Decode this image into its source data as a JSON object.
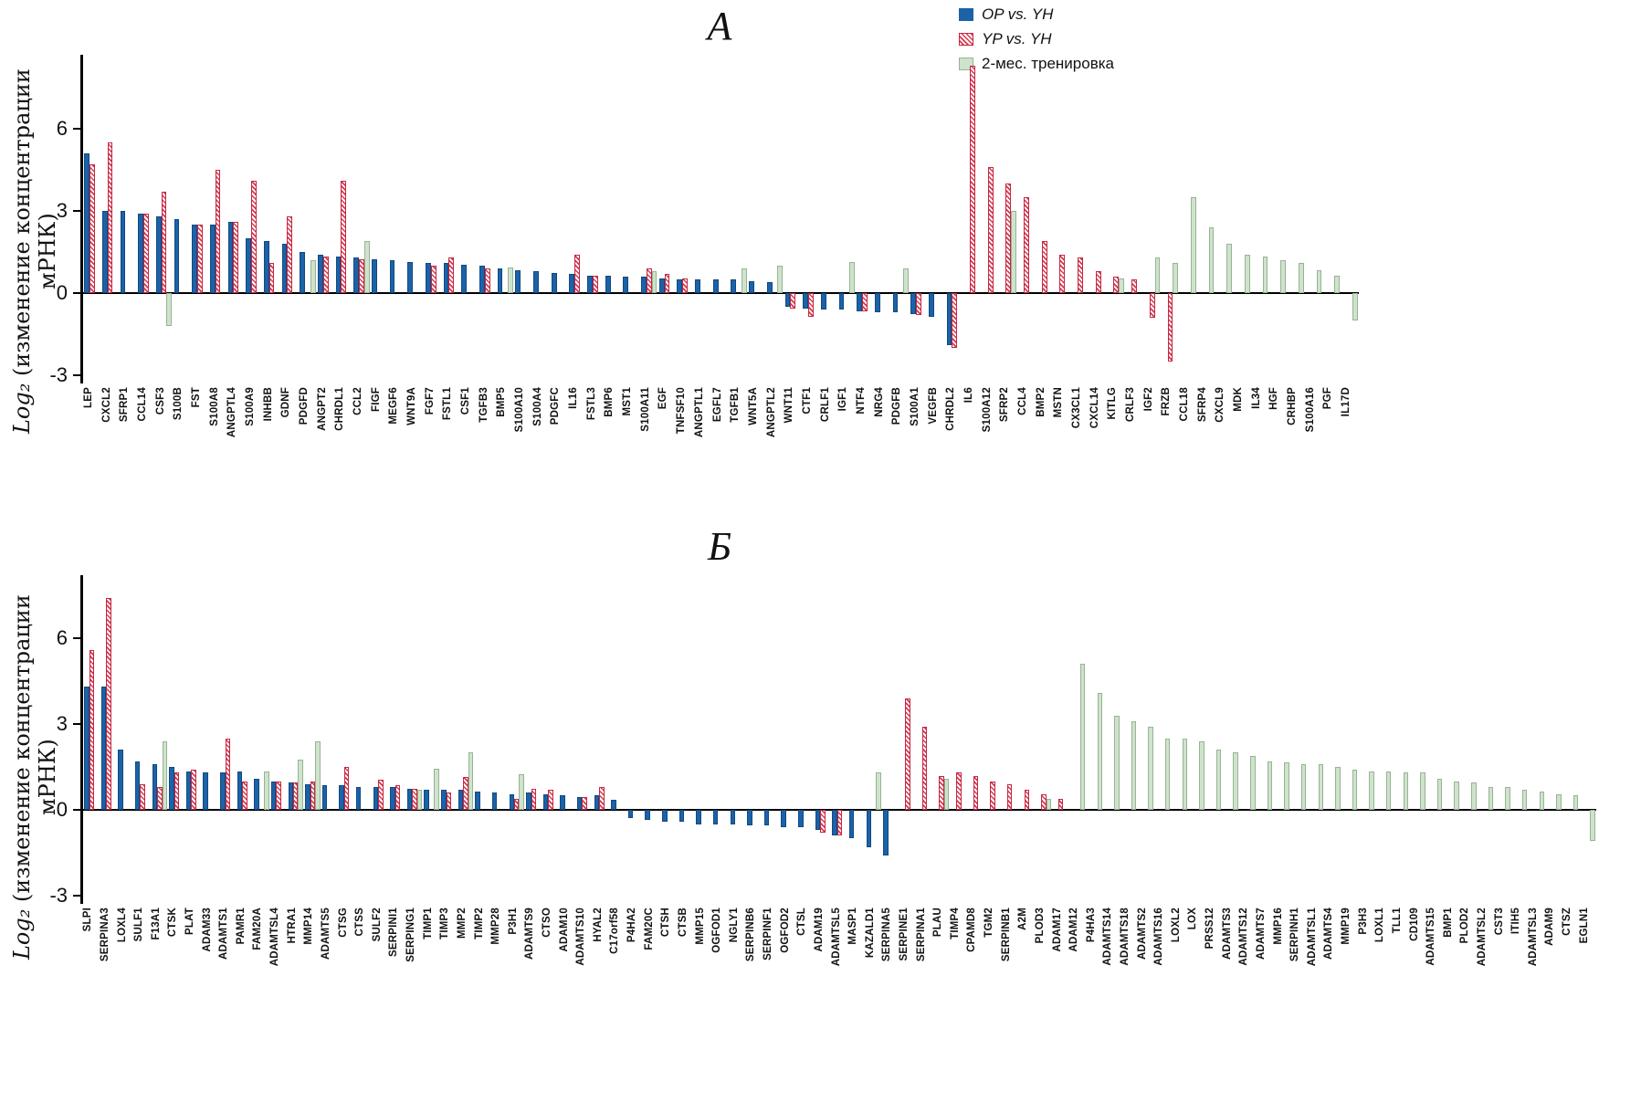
{
  "y_axis": {
    "math": "Log₂",
    "text": "(изменение концентрации мРНК)"
  },
  "legend": {
    "items": [
      {
        "label": "OP vs. YH",
        "key": "op",
        "color": "#1b62a8"
      },
      {
        "label": "YP vs. YH",
        "key": "yp",
        "color": "#d6384f"
      },
      {
        "label": "2-мес. тренировка",
        "key": "tr",
        "color": "#cfe3cc"
      }
    ]
  },
  "chart_data": [
    {
      "type": "bar",
      "title": "А",
      "ylabel": "Log₂ (изменение концентрации мРНК)",
      "ylim": [
        -3.3,
        8.7
      ],
      "yticks": [
        -3,
        0,
        3,
        6
      ],
      "grid": false,
      "legend_position": "top-right",
      "categories": [
        "LEP",
        "CXCL2",
        "SFRP1",
        "CCL14",
        "CSF3",
        "S100B",
        "FST",
        "S100A8",
        "ANGPTL4",
        "S100A9",
        "INHBB",
        "GDNF",
        "PDGFD",
        "ANGPT2",
        "CHRDL1",
        "CCL2",
        "FIGF",
        "MEGF6",
        "WNT9A",
        "FGF7",
        "FSTL1",
        "CSF1",
        "TGFB3",
        "BMP5",
        "S100A10",
        "S100A4",
        "PDGFC",
        "IL16",
        "FSTL3",
        "BMP6",
        "MST1",
        "S100A11",
        "EGF",
        "TNFSF10",
        "ANGPTL1",
        "EGFL7",
        "TGFB1",
        "WNT5A",
        "ANGPTL2",
        "WNT11",
        "CTF1",
        "CRLF1",
        "IGF1",
        "NTF4",
        "NRG4",
        "PDGFB",
        "S100A1",
        "VEGFB",
        "CHRDL2",
        "IL6",
        "S100A12",
        "SFRP2",
        "CCL4",
        "BMP2",
        "MSTN",
        "CX3CL1",
        "CXCL14",
        "KITLG",
        "CRLF3",
        "IGF2",
        "FRZB",
        "CCL18",
        "SFRP4",
        "CXCL9",
        "MDK",
        "IL34",
        "HGF",
        "CRHBP",
        "S100A16",
        "PGF",
        "IL17D"
      ],
      "series": [
        {
          "name": "OP vs. YH",
          "key": "op",
          "values": [
            5.1,
            3.0,
            3.0,
            2.9,
            2.8,
            2.7,
            2.5,
            2.5,
            2.6,
            2.0,
            1.9,
            1.8,
            1.5,
            1.4,
            1.35,
            1.3,
            1.25,
            1.2,
            1.15,
            1.1,
            1.1,
            1.05,
            1.0,
            0.9,
            0.85,
            0.8,
            0.75,
            0.7,
            0.65,
            0.65,
            0.6,
            0.6,
            0.55,
            0.5,
            0.5,
            0.5,
            0.5,
            0.45,
            0.4,
            -0.5,
            -0.55,
            -0.6,
            -0.6,
            -0.65,
            -0.7,
            -0.7,
            -0.75,
            -0.85,
            -1.9,
            null,
            null,
            null,
            null,
            null,
            null,
            null,
            null,
            null,
            null,
            null,
            null,
            null,
            null,
            null,
            null,
            null,
            null,
            null,
            null,
            null,
            null
          ]
        },
        {
          "name": "YP vs. YH",
          "key": "yp",
          "values": [
            4.7,
            5.5,
            null,
            2.9,
            3.7,
            null,
            2.5,
            4.5,
            2.6,
            4.1,
            1.1,
            2.8,
            null,
            1.35,
            4.1,
            1.25,
            null,
            null,
            null,
            1.0,
            1.3,
            null,
            0.9,
            null,
            null,
            null,
            null,
            1.4,
            0.65,
            null,
            null,
            0.9,
            0.7,
            0.55,
            null,
            null,
            null,
            null,
            null,
            -0.55,
            -0.85,
            null,
            null,
            -0.65,
            null,
            null,
            -0.8,
            null,
            -2.0,
            8.3,
            4.6,
            4.0,
            3.5,
            1.9,
            1.4,
            1.3,
            0.8,
            0.6,
            0.5,
            -0.9,
            -2.5,
            null,
            null,
            null,
            null,
            null,
            null,
            null,
            null,
            null,
            null
          ]
        },
        {
          "name": "2-мес. тренировка",
          "key": "tr",
          "values": [
            null,
            null,
            null,
            null,
            -1.2,
            null,
            null,
            null,
            null,
            null,
            null,
            null,
            1.2,
            null,
            null,
            1.9,
            null,
            null,
            null,
            null,
            null,
            null,
            null,
            0.95,
            null,
            null,
            null,
            null,
            null,
            null,
            null,
            0.8,
            null,
            null,
            null,
            null,
            0.9,
            null,
            1.0,
            null,
            null,
            null,
            1.15,
            null,
            null,
            0.9,
            null,
            null,
            null,
            null,
            null,
            3.0,
            null,
            null,
            null,
            null,
            null,
            0.55,
            null,
            1.3,
            1.1,
            3.5,
            2.4,
            1.8,
            1.4,
            1.35,
            1.2,
            1.1,
            0.85,
            0.65,
            -1.0
          ]
        }
      ]
    },
    {
      "type": "bar",
      "title": "Б",
      "ylabel": "Log₂ (изменение концентрации мРНК)",
      "ylim": [
        -3.3,
        8.2
      ],
      "yticks": [
        -3,
        0,
        3,
        6
      ],
      "grid": false,
      "legend_position": "none",
      "categories": [
        "SLPI",
        "SERPINA3",
        "LOXL4",
        "SULF1",
        "F13A1",
        "CTSK",
        "PLAT",
        "ADAM33",
        "ADAMTS1",
        "PAMR1",
        "FAM20A",
        "ADAMTSL4",
        "HTRA1",
        "MMP14",
        "ADAMTS5",
        "CTSG",
        "CTSS",
        "SULF2",
        "SERPINI1",
        "SERPING1",
        "TIMP1",
        "TIMP3",
        "MMP2",
        "TIMP2",
        "MMP28",
        "P3H1",
        "ADAMTS9",
        "CTSO",
        "ADAM10",
        "ADAMTS10",
        "HYAL2",
        "C17orf58",
        "P4HA2",
        "FAM20C",
        "CTSH",
        "CTSB",
        "MMP15",
        "OGFOD1",
        "NGLY1",
        "SERPINB6",
        "SERPINF1",
        "OGFOD2",
        "CTSL",
        "ADAM19",
        "ADAMTSL5",
        "MASP1",
        "KAZALD1",
        "SERPINA5",
        "SERPINE1",
        "SERPINA1",
        "PLAU",
        "TIMP4",
        "CPAMD8",
        "TGM2",
        "SERPINB1",
        "A2M",
        "PLOD3",
        "ADAM17",
        "ADAM12",
        "P4HA3",
        "ADAMTS14",
        "ADAMTS18",
        "ADAMTS2",
        "ADAMTS16",
        "LOXL2",
        "LOX",
        "PRSS12",
        "ADAMTS3",
        "ADAMTS12",
        "ADAMTS7",
        "MMP16",
        "SERPINH1",
        "ADAMTSL1",
        "ADAMTS4",
        "MMP19",
        "P3H3",
        "LOXL1",
        "TLL1",
        "CD109",
        "ADAMTS15",
        "BMP1",
        "PLOD2",
        "ADAMTSL2",
        "CST3",
        "ITIH5",
        "ADAMTSL3",
        "ADAM9",
        "CTSZ",
        "EGLN1"
      ],
      "series": [
        {
          "name": "OP vs. YH",
          "key": "op",
          "values": [
            4.3,
            4.3,
            2.1,
            1.7,
            1.6,
            1.5,
            1.35,
            1.3,
            1.3,
            1.35,
            1.1,
            1.0,
            0.95,
            0.9,
            0.85,
            0.85,
            0.8,
            0.8,
            0.8,
            0.75,
            0.7,
            0.7,
            0.7,
            0.65,
            0.6,
            0.55,
            0.6,
            0.55,
            0.5,
            0.45,
            0.5,
            0.35,
            -0.3,
            -0.35,
            -0.4,
            -0.4,
            -0.5,
            -0.5,
            -0.5,
            -0.55,
            -0.55,
            -0.6,
            -0.6,
            -0.7,
            -0.9,
            -1.0,
            -1.3,
            -1.6,
            null,
            null,
            null,
            null,
            null,
            null,
            null,
            null,
            null,
            null,
            null,
            null,
            null,
            null,
            null,
            null,
            null,
            null,
            null,
            null,
            null,
            null,
            null,
            null,
            null,
            null,
            null,
            null,
            null,
            null,
            null,
            null,
            null,
            null,
            null,
            null,
            null,
            null,
            null,
            null,
            null
          ]
        },
        {
          "name": "YP vs. YH",
          "key": "yp",
          "values": [
            5.6,
            7.4,
            null,
            0.9,
            0.8,
            1.3,
            1.4,
            null,
            2.5,
            1.0,
            null,
            1.0,
            0.95,
            1.0,
            null,
            1.5,
            null,
            1.05,
            0.85,
            0.75,
            null,
            0.6,
            1.15,
            null,
            null,
            0.4,
            0.75,
            0.7,
            null,
            0.45,
            0.8,
            null,
            null,
            null,
            null,
            null,
            null,
            null,
            null,
            null,
            null,
            null,
            null,
            -0.8,
            -0.9,
            null,
            null,
            null,
            3.9,
            2.9,
            1.2,
            1.3,
            1.2,
            1.0,
            0.9,
            0.7,
            0.55,
            0.4,
            null,
            null,
            null,
            null,
            null,
            null,
            null,
            null,
            null,
            null,
            null,
            null,
            null,
            null,
            null,
            null,
            null,
            null,
            null,
            null,
            null,
            null,
            null,
            null,
            null,
            null,
            null,
            null,
            null,
            null,
            null
          ]
        },
        {
          "name": "2-мес. тренировка",
          "key": "tr",
          "values": [
            null,
            null,
            null,
            null,
            2.4,
            null,
            null,
            null,
            null,
            null,
            1.35,
            null,
            1.75,
            2.4,
            null,
            null,
            null,
            null,
            null,
            0.7,
            1.45,
            null,
            2.0,
            null,
            null,
            1.25,
            null,
            null,
            null,
            null,
            null,
            null,
            null,
            null,
            null,
            null,
            null,
            null,
            null,
            null,
            null,
            null,
            null,
            null,
            null,
            null,
            1.3,
            null,
            null,
            null,
            1.1,
            null,
            null,
            null,
            null,
            null,
            0.4,
            null,
            5.1,
            4.1,
            3.3,
            3.1,
            2.9,
            2.5,
            2.5,
            2.4,
            2.1,
            2.0,
            1.9,
            1.7,
            1.65,
            1.6,
            1.6,
            1.5,
            1.4,
            1.35,
            1.35,
            1.3,
            1.3,
            1.1,
            1.0,
            0.95,
            0.8,
            0.8,
            0.7,
            0.65,
            0.55,
            0.5,
            -1.1
          ]
        }
      ]
    }
  ]
}
